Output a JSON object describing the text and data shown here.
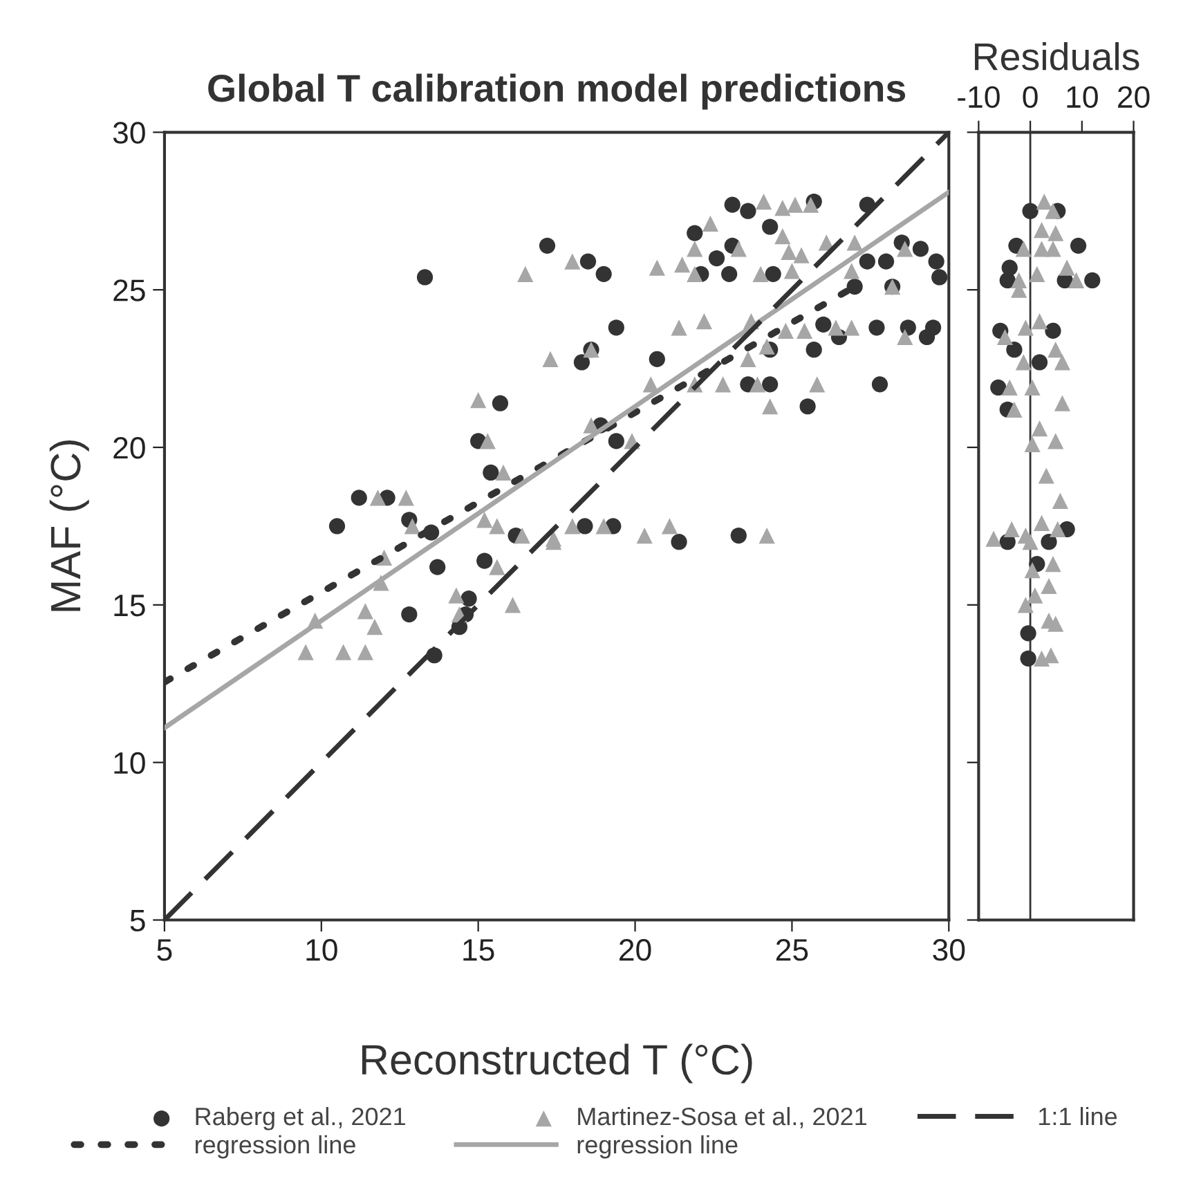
{
  "chart_data": [
    {
      "type": "scatter",
      "title": "Global T calibration model predictions",
      "xlabel": "Reconstructed T (°C)",
      "ylabel": "MAF (°C)",
      "xlim": [
        5,
        30
      ],
      "ylim": [
        5,
        30
      ],
      "xticks": [
        5,
        10,
        15,
        20,
        25,
        30
      ],
      "yticks": [
        5,
        10,
        15,
        20,
        25,
        30
      ],
      "grid": false,
      "legend": "bottom",
      "series": [
        {
          "name": "Raberg et al., 2021",
          "color": "#333333",
          "marker": "circle",
          "x": [
            10.5,
            11.2,
            12.1,
            12.8,
            12.8,
            13.5,
            13.6,
            13.7,
            13.3,
            14.4,
            14.7,
            14.6,
            15.2,
            15.0,
            15.4,
            15.7,
            17.2,
            16.2,
            18.5,
            19.0,
            19.4,
            18.3,
            18.6,
            20.7,
            19.4,
            18.9,
            21.4,
            23.3,
            18.4,
            19.3,
            21.9,
            23.1,
            23.6,
            24.3,
            25.7,
            27.4,
            23.1,
            22.6,
            23.0,
            22.1,
            24.4,
            28.5,
            29.1,
            29.6,
            29.7,
            28.0,
            27.4,
            27.0,
            28.2,
            26.0,
            25.7,
            26.5,
            27.7,
            28.7,
            29.3,
            29.5,
            24.3,
            23.6,
            24.3,
            25.5,
            27.8
          ],
          "values": [
            17.5,
            18.4,
            18.4,
            17.7,
            14.7,
            17.3,
            13.4,
            16.2,
            25.4,
            14.3,
            15.2,
            14.7,
            16.4,
            20.2,
            19.2,
            21.4,
            26.4,
            17.2,
            25.9,
            25.5,
            23.8,
            22.7,
            23.1,
            22.8,
            20.2,
            20.7,
            17.0,
            17.2,
            17.5,
            17.5,
            26.8,
            27.7,
            27.5,
            27.0,
            27.8,
            27.7,
            26.4,
            26.0,
            25.5,
            25.5,
            25.5,
            26.5,
            26.3,
            25.9,
            25.4,
            25.9,
            25.9,
            25.1,
            25.1,
            23.9,
            23.1,
            23.5,
            23.8,
            23.8,
            23.5,
            23.8,
            23.1,
            22.0,
            22.0,
            21.3,
            22.0
          ]
        },
        {
          "name": "regression line",
          "type": "line",
          "color": "#333333",
          "line_style": "dotted",
          "x": [
            5,
            27
          ],
          "values": [
            12.55,
            25.1
          ]
        },
        {
          "name": "Martinez-Sosa et al., 2021",
          "color": "#a6a6a6",
          "marker": "triangle",
          "x": [
            16.5,
            17.3,
            15.0,
            15.3,
            15.8,
            11.8,
            12.7,
            12.9,
            15.2,
            15.6,
            16.4,
            17.4,
            15.6,
            12.0,
            11.9,
            9.8,
            11.4,
            11.7,
            14.3,
            14.4,
            16.1,
            9.5,
            10.7,
            11.4,
            24.1,
            24.7,
            25.1,
            25.6,
            22.4,
            21.9,
            23.3,
            24.7,
            24.9,
            25.3,
            26.1,
            27.0,
            18.0,
            20.7,
            21.5,
            21.9,
            24.0,
            25.0,
            26.9,
            28.2,
            28.6,
            21.4,
            22.2,
            23.7,
            24.8,
            25.4,
            26.4,
            26.9,
            28.6,
            24.2,
            23.6,
            18.6,
            20.5,
            21.9,
            22.8,
            23.9,
            25.8,
            24.3,
            18.6,
            19.9,
            17.4,
            18.0,
            19.0,
            20.3,
            21.1,
            24.2
          ],
          "values": [
            25.5,
            22.8,
            21.5,
            20.2,
            19.2,
            18.4,
            18.4,
            17.5,
            17.7,
            17.5,
            17.2,
            17.1,
            16.2,
            16.5,
            15.7,
            14.5,
            14.8,
            14.3,
            15.3,
            14.7,
            15.0,
            13.5,
            13.5,
            13.5,
            27.8,
            27.6,
            27.7,
            27.7,
            27.1,
            26.3,
            26.3,
            26.7,
            26.2,
            26.1,
            26.5,
            26.5,
            25.9,
            25.7,
            25.8,
            25.5,
            25.5,
            25.6,
            25.6,
            25.1,
            26.3,
            23.8,
            24.0,
            24.0,
            23.7,
            23.7,
            23.8,
            23.8,
            23.5,
            23.2,
            22.8,
            23.1,
            22.0,
            22.0,
            22.0,
            22.0,
            22.0,
            21.3,
            20.7,
            20.2,
            17.0,
            17.5,
            17.5,
            17.2,
            17.5,
            17.2
          ]
        },
        {
          "name": "regression line",
          "type": "line",
          "color": "#a6a6a6",
          "line_style": "solid",
          "x": [
            5,
            30
          ],
          "values": [
            11.1,
            28.1
          ]
        },
        {
          "name": "1:1 line",
          "type": "line",
          "color": "#333333",
          "line_style": "dashed",
          "x": [
            5,
            30
          ],
          "values": [
            5,
            30
          ]
        }
      ]
    },
    {
      "type": "scatter",
      "xlabel": "Residuals",
      "xlim": [
        -10,
        20
      ],
      "ylim": [
        5,
        30
      ],
      "xticks": [
        -10,
        0,
        10,
        20
      ],
      "yticks": [
        5,
        10,
        15,
        20,
        25,
        30
      ],
      "tick_labels": "x",
      "grid": false,
      "ref_lines": [
        {
          "axis": "x",
          "value": 0,
          "color": "#333333"
        }
      ],
      "series": [
        {
          "color": "#333333",
          "marker": "circle",
          "x": [
            0,
            5.3,
            9.3,
            12,
            -4.4,
            -4,
            -2.7,
            6.7,
            -5.8,
            4.4,
            -3.1,
            1.8,
            -6.2,
            -4.4,
            7.1,
            3.6,
            -4.4,
            1.3,
            -0.4,
            -0.4
          ],
          "values": [
            27.5,
            27.5,
            26.4,
            25.3,
            25.3,
            25.7,
            26.4,
            25.3,
            23.7,
            23.7,
            23.1,
            22.7,
            21.9,
            21.2,
            17.4,
            17.0,
            17.0,
            16.3,
            14.1,
            13.3
          ]
        },
        {
          "color": "#a6a6a6",
          "marker": "triangle",
          "x": [
            2.7,
            4.4,
            2.2,
            4.9,
            -1.3,
            2.2,
            4.4,
            7.1,
            8.9,
            -2.2,
            1.3,
            -2.2,
            1.8,
            -0.9,
            -4.9,
            4.9,
            -1.3,
            6.2,
            -4,
            0.4,
            -3.1,
            6.2,
            1.8,
            0.4,
            4.9,
            3.1,
            5.8,
            -7.1,
            -3.6,
            -0.9,
            2.2,
            5.3,
            0,
            0.4,
            4.4,
            3.6,
            -0.9,
            0.9,
            3.6,
            4.9,
            2.2,
            4
          ],
          "values": [
            27.8,
            27.5,
            26.9,
            26.8,
            26.3,
            26.3,
            26.3,
            25.7,
            25.3,
            25.3,
            25.5,
            25.0,
            24.0,
            23.8,
            23.5,
            23.1,
            22.7,
            22.7,
            21.9,
            21.9,
            21.2,
            21.4,
            20.6,
            20.1,
            20.2,
            19.1,
            18.3,
            17.1,
            17.4,
            17.2,
            17.6,
            17.4,
            17.0,
            16.1,
            16.3,
            15.6,
            15.0,
            15.3,
            14.5,
            14.4,
            13.3,
            13.4
          ]
        }
      ]
    }
  ]
}
